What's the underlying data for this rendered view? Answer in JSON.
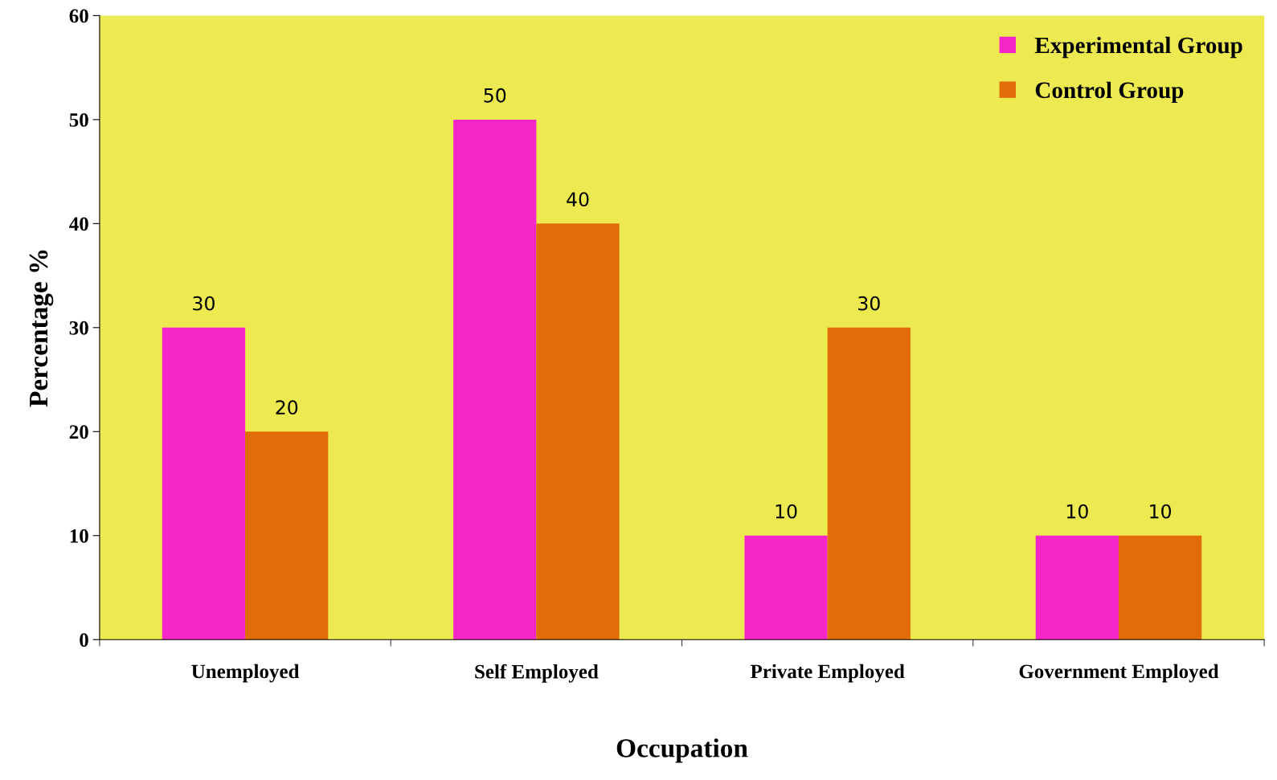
{
  "chart_data": {
    "type": "bar",
    "xlabel": "Occupation",
    "ylabel": "Percentage %",
    "categories": [
      "Unemployed",
      "Self Employed",
      "Private Employed",
      "Government Employed"
    ],
    "series": [
      {
        "name": "Experimental Group",
        "color": "#f526c8",
        "values": [
          30,
          50,
          10,
          10
        ]
      },
      {
        "name": "Control Group",
        "color": "#e36c0a",
        "values": [
          20,
          40,
          30,
          10
        ]
      }
    ],
    "ylim": [
      0,
      60
    ],
    "yticks": [
      0,
      10,
      20,
      30,
      40,
      50,
      60
    ],
    "grid": false,
    "legend": "top right",
    "data_labels": true
  }
}
